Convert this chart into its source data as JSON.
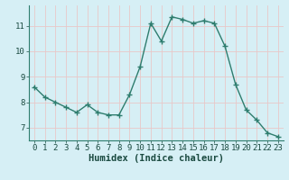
{
  "x": [
    0,
    1,
    2,
    3,
    4,
    5,
    6,
    7,
    8,
    9,
    10,
    11,
    12,
    13,
    14,
    15,
    16,
    17,
    18,
    19,
    20,
    21,
    22,
    23
  ],
  "y": [
    8.6,
    8.2,
    8.0,
    7.8,
    7.6,
    7.9,
    7.6,
    7.5,
    7.5,
    8.3,
    9.4,
    11.1,
    10.4,
    11.35,
    11.25,
    11.1,
    11.2,
    11.1,
    10.2,
    8.7,
    7.7,
    7.3,
    6.8,
    6.65
  ],
  "line_color": "#2e7d6e",
  "marker": "+",
  "marker_size": 4,
  "bg_color": "#d6eff5",
  "grid_color": "#b8d8e0",
  "xlabel": "Humidex (Indice chaleur)",
  "ylim": [
    6.5,
    11.8
  ],
  "xlim": [
    -0.5,
    23.5
  ],
  "yticks": [
    7,
    8,
    9,
    10,
    11
  ],
  "xticks": [
    0,
    1,
    2,
    3,
    4,
    5,
    6,
    7,
    8,
    9,
    10,
    11,
    12,
    13,
    14,
    15,
    16,
    17,
    18,
    19,
    20,
    21,
    22,
    23
  ],
  "tick_fontsize": 6.5,
  "xlabel_fontsize": 7.5,
  "line_width": 1.0
}
